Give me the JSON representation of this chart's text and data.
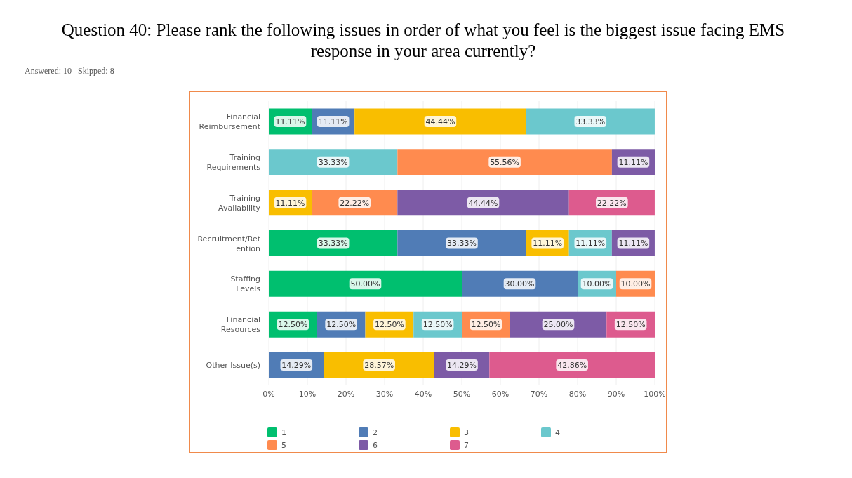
{
  "chart_data": {
    "type": "bar",
    "orientation": "horizontal",
    "stacked": true,
    "title": "Question 40: Please rank the following issues in order of what you feel is the biggest issue facing EMS response in your area currently?",
    "annotations": [
      "Answered: 10   Skipped: 8"
    ],
    "categories": [
      "Financial Reimbursement",
      "Training Requirements",
      "Training Availability",
      "Recruitment/Retention",
      "Staffing Levels",
      "Financial Resources",
      "Other Issue(s)"
    ],
    "series": [
      {
        "name": "1",
        "color": "#00bf6f",
        "values": [
          11.11,
          null,
          null,
          33.33,
          50.0,
          12.5,
          null
        ],
        "value_labels": [
          "11.11%",
          null,
          null,
          "33.33%",
          "50.00%",
          "12.50%",
          null
        ]
      },
      {
        "name": "2",
        "color": "#507cb6",
        "values": [
          11.11,
          null,
          null,
          33.33,
          30.0,
          12.5,
          14.29
        ],
        "value_labels": [
          "11.11%",
          null,
          null,
          "33.33%",
          "30.00%",
          "12.50%",
          "14.29%"
        ]
      },
      {
        "name": "3",
        "color": "#f9be00",
        "values": [
          44.44,
          null,
          11.11,
          11.11,
          null,
          12.5,
          28.57
        ],
        "value_labels": [
          "44.44%",
          null,
          "11.11%",
          "11.11%",
          null,
          "12.50%",
          "28.57%"
        ]
      },
      {
        "name": "4",
        "color": "#6bc8cd",
        "values": [
          33.33,
          33.33,
          null,
          11.11,
          10.0,
          12.5,
          null
        ],
        "value_labels": [
          "33.33%",
          "33.33%",
          null,
          "11.11%",
          "10.00%",
          "12.50%",
          null
        ]
      },
      {
        "name": "5",
        "color": "#ff8b4f",
        "values": [
          null,
          55.56,
          22.22,
          null,
          10.0,
          12.5,
          null
        ],
        "value_labels": [
          null,
          "55.56%",
          "22.22%",
          null,
          "10.00%",
          "12.50%",
          null
        ]
      },
      {
        "name": "6",
        "color": "#7d5ba6",
        "values": [
          null,
          11.11,
          44.44,
          11.11,
          null,
          25.0,
          14.29
        ],
        "value_labels": [
          null,
          "11.11%",
          "44.44%",
          "11.11%",
          null,
          "25.00%",
          "14.29%"
        ]
      },
      {
        "name": "7",
        "color": "#dd5b8e",
        "values": [
          null,
          null,
          22.22,
          null,
          null,
          12.5,
          42.86
        ],
        "value_labels": [
          null,
          null,
          "22.22%",
          null,
          null,
          "12.50%",
          "42.86%"
        ]
      }
    ],
    "xlim": [
      0,
      100
    ],
    "xticks": [
      {
        "value": 0,
        "label": "0%"
      },
      {
        "value": 10,
        "label": "10%"
      },
      {
        "value": 20,
        "label": "20%"
      },
      {
        "value": 30,
        "label": "30%"
      },
      {
        "value": 40,
        "label": "40%"
      },
      {
        "value": 50,
        "label": "50%"
      },
      {
        "value": 60,
        "label": "60%"
      },
      {
        "value": 70,
        "label": "70%"
      },
      {
        "value": 80,
        "label": "80%"
      },
      {
        "value": 90,
        "label": "90%"
      },
      {
        "value": 100,
        "label": "100%"
      }
    ],
    "grid": "x",
    "legend": "bottom"
  }
}
